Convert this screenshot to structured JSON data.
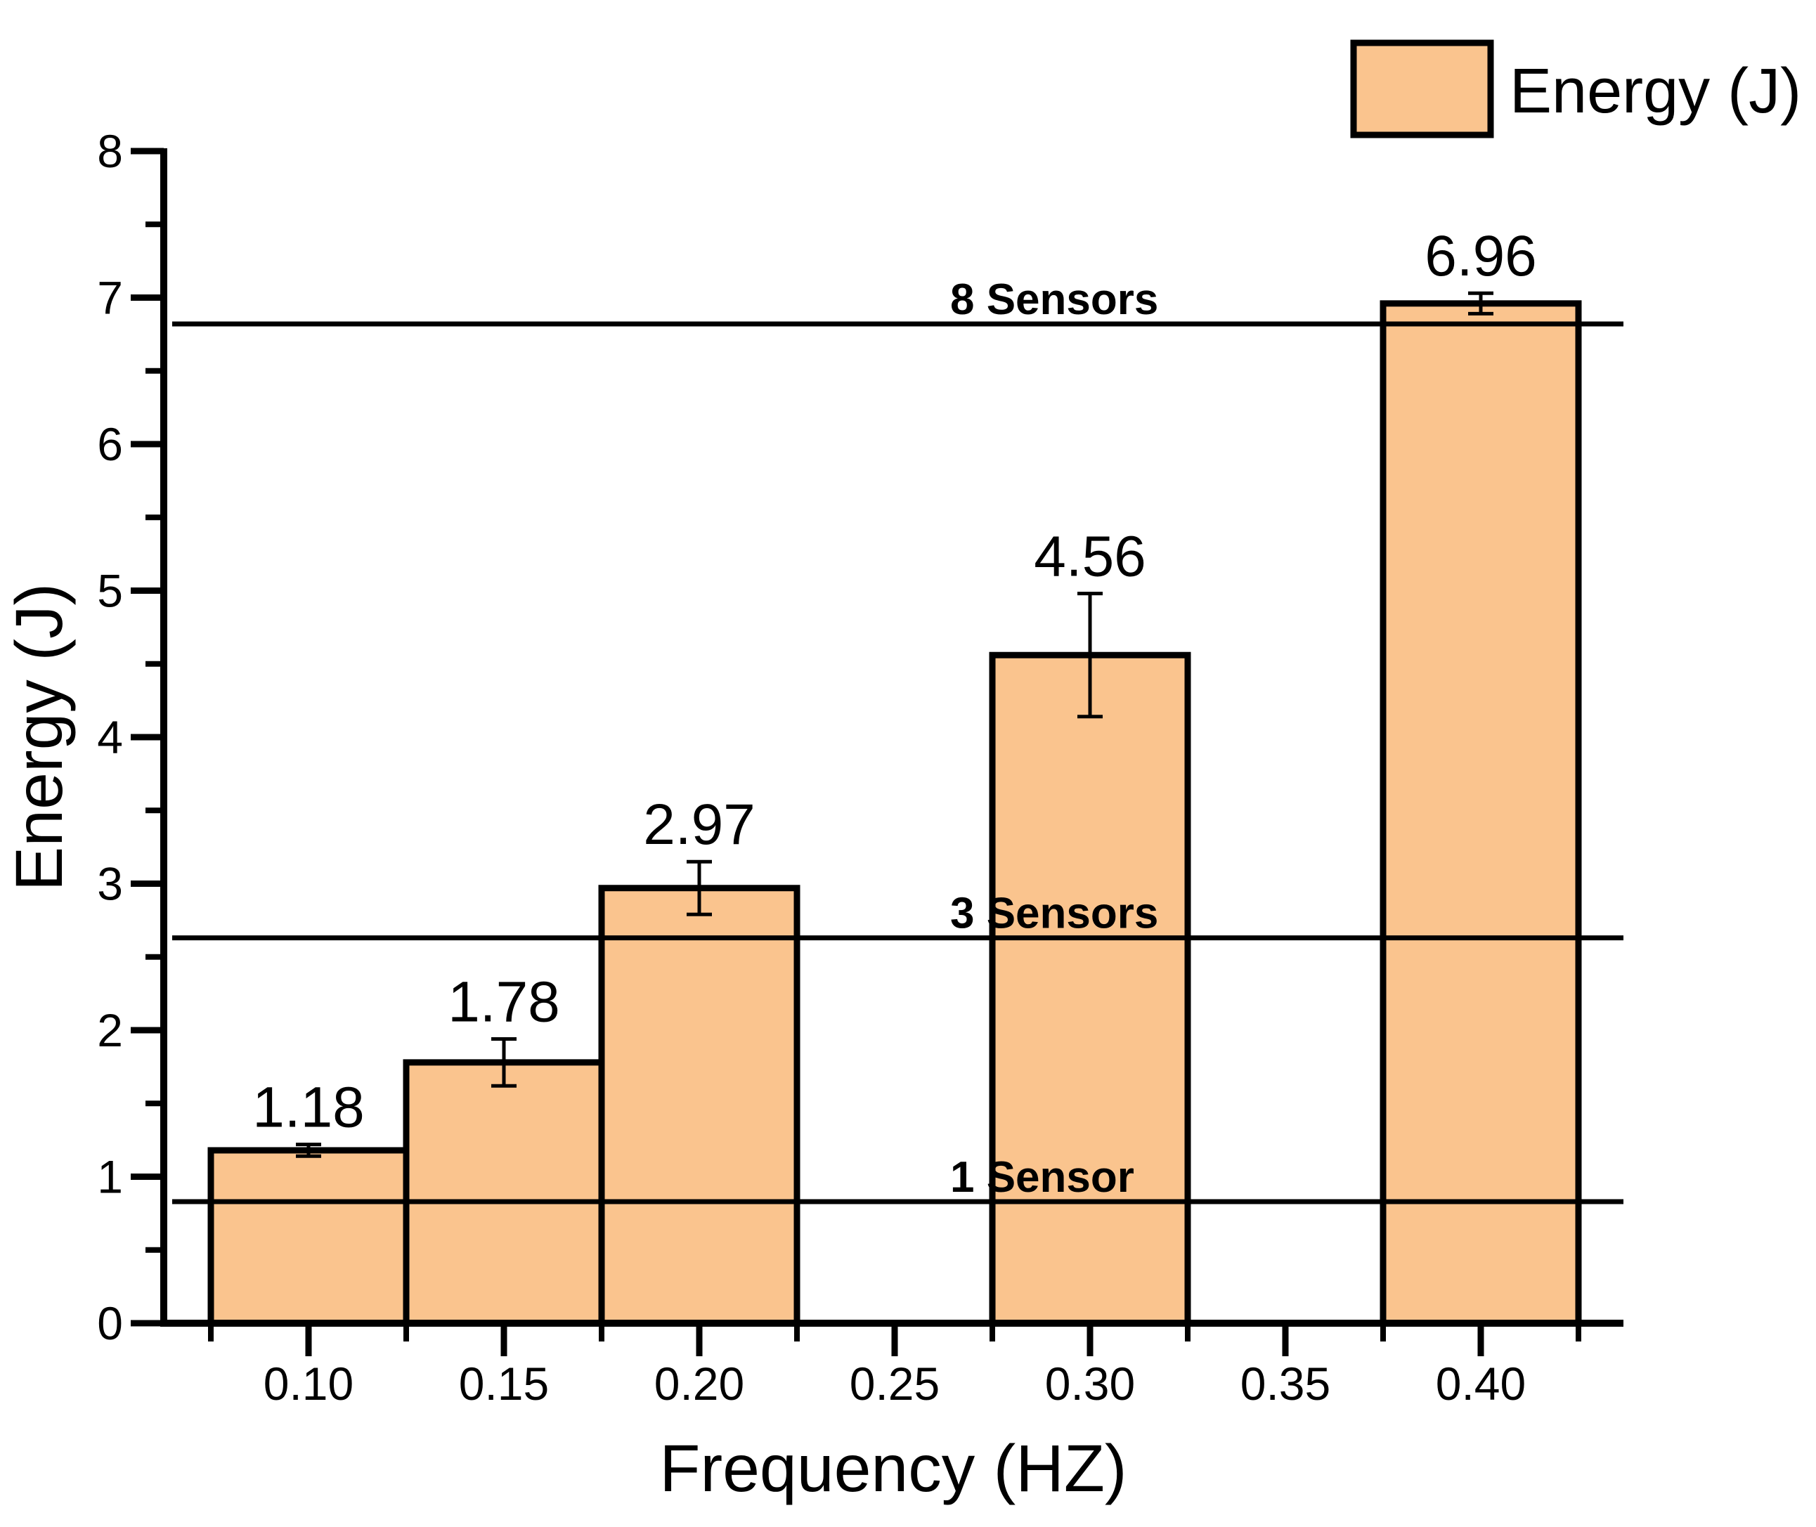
{
  "page": {
    "background": "#FFFFFF",
    "text_color": "#000000"
  },
  "chart_data": {
    "type": "bar",
    "title": "",
    "xlabel": "Frequency (HZ)",
    "ylabel": "Energy (J)",
    "legend_label": "Energy (J)",
    "legend_position": "top-right",
    "grid": false,
    "x": [
      0.1,
      0.15,
      0.2,
      0.3,
      0.4
    ],
    "values": [
      1.18,
      1.78,
      2.97,
      4.56,
      6.96
    ],
    "value_labels": [
      "1.18",
      "1.78",
      "2.97",
      "4.56",
      "6.96"
    ],
    "errors": [
      0.04,
      0.16,
      0.18,
      0.42,
      0.07
    ],
    "bar_width_x": 0.05,
    "bar_fill": "#FAC48E",
    "bar_edge": "#000000",
    "xlim": [
      0.063,
      0.4365
    ],
    "ylim": [
      0,
      8
    ],
    "x_major_ticks": [
      0.1,
      0.15,
      0.2,
      0.25,
      0.3,
      0.35,
      0.4
    ],
    "x_minor_ticks": [
      0.075,
      0.125,
      0.175,
      0.225,
      0.275,
      0.325,
      0.375,
      0.425
    ],
    "y_major_ticks": [
      0,
      1,
      2,
      3,
      4,
      5,
      6,
      7,
      8
    ],
    "y_minor_ticks": [
      0.5,
      1.5,
      2.5,
      3.5,
      4.5,
      5.5,
      6.5,
      7.5
    ],
    "reference_lines": [
      {
        "label": "1 Sensor",
        "value": 0.83
      },
      {
        "label": "3 Sensors",
        "value": 2.63
      },
      {
        "label": "8 Sensors",
        "value": 6.82
      }
    ]
  }
}
